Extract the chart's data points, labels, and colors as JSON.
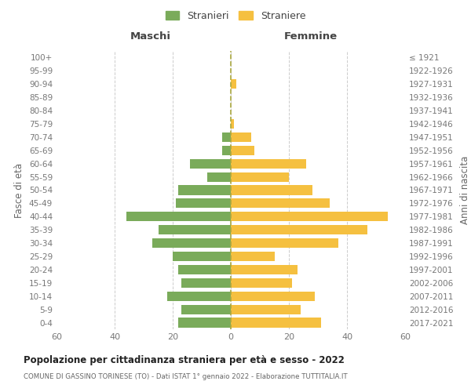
{
  "age_groups": [
    "0-4",
    "5-9",
    "10-14",
    "15-19",
    "20-24",
    "25-29",
    "30-34",
    "35-39",
    "40-44",
    "45-49",
    "50-54",
    "55-59",
    "60-64",
    "65-69",
    "70-74",
    "75-79",
    "80-84",
    "85-89",
    "90-94",
    "95-99",
    "100+"
  ],
  "birth_years": [
    "2017-2021",
    "2012-2016",
    "2007-2011",
    "2002-2006",
    "1997-2001",
    "1992-1996",
    "1987-1991",
    "1982-1986",
    "1977-1981",
    "1972-1976",
    "1967-1971",
    "1962-1966",
    "1957-1961",
    "1952-1956",
    "1947-1951",
    "1942-1946",
    "1937-1941",
    "1932-1936",
    "1927-1931",
    "1922-1926",
    "≤ 1921"
  ],
  "males": [
    18,
    17,
    22,
    17,
    18,
    20,
    27,
    25,
    36,
    19,
    18,
    8,
    14,
    3,
    3,
    0,
    0,
    0,
    0,
    0,
    0
  ],
  "females": [
    31,
    24,
    29,
    21,
    23,
    15,
    37,
    47,
    54,
    34,
    28,
    20,
    26,
    8,
    7,
    1,
    0,
    0,
    2,
    0,
    0
  ],
  "male_color": "#7aab5a",
  "female_color": "#f5c040",
  "xlim": 60,
  "title": "Popolazione per cittadinanza straniera per età e sesso - 2022",
  "subtitle": "COMUNE DI GASSINO TORINESE (TO) - Dati ISTAT 1° gennaio 2022 - Elaborazione TUTTITALIA.IT",
  "left_header": "Maschi",
  "right_header": "Femmine",
  "ylabel_left": "Fasce di età",
  "ylabel_right": "Anni di nascita",
  "legend_male": "Stranieri",
  "legend_female": "Straniere",
  "background_color": "#ffffff",
  "grid_color": "#cccccc",
  "dashed_line_color": "#aaa840"
}
